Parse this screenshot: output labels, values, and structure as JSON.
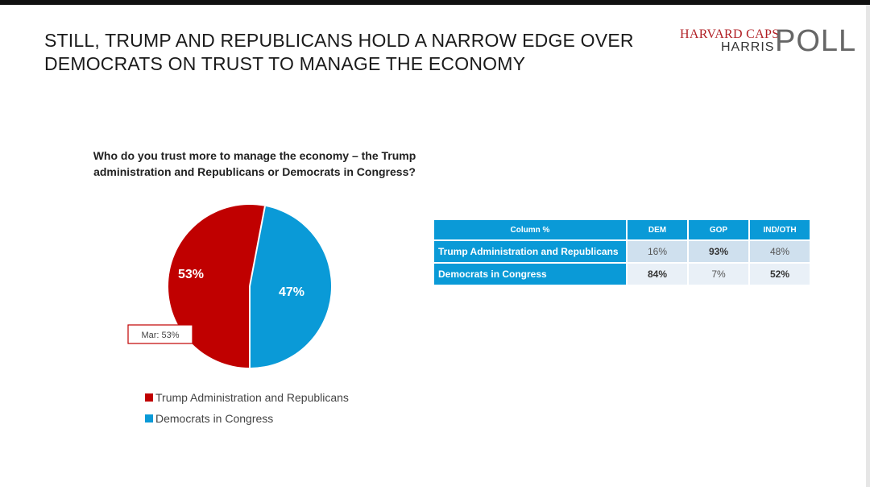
{
  "title_lines": [
    "STILL, TRUMP AND REPUBLICANS HOLD A NARROW EDGE OVER",
    "DEMOCRATS ON TRUST TO MANAGE THE ECONOMY"
  ],
  "logo": {
    "line1": "HARVARD CAPS",
    "line2": "HARRIS",
    "line3": "POLL"
  },
  "colors": {
    "red": "#c00000",
    "blue": "#0a9ad7",
    "callout_border": "#c00000"
  },
  "chart_data": {
    "type": "pie",
    "title": "Who do you trust more to manage the economy – the Trump administration and Republicans or Democrats in Congress?",
    "slices": [
      {
        "name": "Trump Administration and Republicans",
        "value": 53,
        "label": "53%",
        "color": "#c00000"
      },
      {
        "name": "Democrats in Congress",
        "value": 47,
        "label": "47%",
        "color": "#0a9ad7"
      }
    ],
    "annotation": "Mar: 53%",
    "legend_position": "bottom-left"
  },
  "crosstab": {
    "header": {
      "label": "Column %",
      "cols": [
        "DEM",
        "GOP",
        "IND/OTH"
      ]
    },
    "rows": [
      {
        "label": "Trump Administration and Republicans",
        "values": [
          "16%",
          "93%",
          "48%"
        ],
        "bold": [
          false,
          true,
          false
        ]
      },
      {
        "label": "Democrats in Congress",
        "values": [
          "84%",
          "7%",
          "52%"
        ],
        "bold": [
          true,
          false,
          true
        ]
      }
    ]
  }
}
